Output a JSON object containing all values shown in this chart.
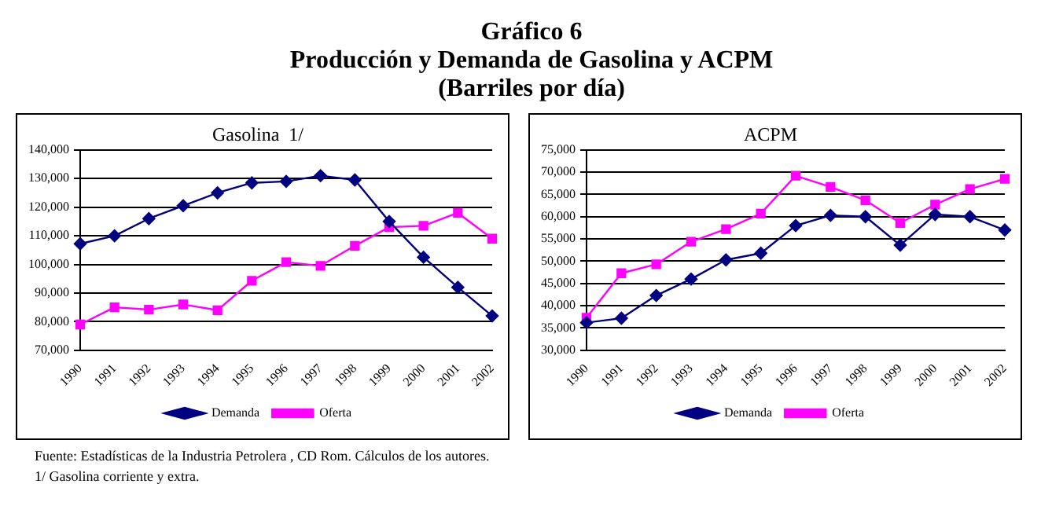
{
  "chart_data": [
    {
      "type": "other",
      "title": "Gráfico 6",
      "subtitle": "Producción y Demanda de Gasolina y ACPM",
      "annotations": [
        "(Barriles por día)"
      ]
    },
    {
      "type": "line",
      "title": "Gasolina  1/",
      "categories": [
        "1990",
        "1991",
        "1992",
        "1993",
        "1994",
        "1995",
        "1996",
        "1997",
        "1998",
        "1999",
        "2000",
        "2001",
        "2002"
      ],
      "series": [
        {
          "name": "Demanda",
          "color": "#000080",
          "marker": "diamond",
          "values": [
            107200,
            110000,
            116000,
            120500,
            125000,
            128500,
            129000,
            131000,
            129500,
            115000,
            102500,
            92000,
            82000
          ]
        },
        {
          "name": "Oferta",
          "color": "#ff00ff",
          "marker": "square",
          "values": [
            79000,
            85000,
            84200,
            86000,
            84000,
            94300,
            100800,
            99500,
            106500,
            113000,
            113500,
            118000,
            109000
          ]
        }
      ],
      "ylim": [
        70000,
        140000
      ],
      "yticks": [
        {
          "value": 70000,
          "label": "70,000"
        },
        {
          "value": 80000,
          "label": "80,000"
        },
        {
          "value": 90000,
          "label": "90,000"
        },
        {
          "value": 100000,
          "label": "100,000"
        },
        {
          "value": 110000,
          "label": "110,000"
        },
        {
          "value": 120000,
          "label": "120,000"
        },
        {
          "value": 130000,
          "label": "130,000"
        },
        {
          "value": 140000,
          "label": "140,000"
        }
      ],
      "grid": "y",
      "legend": "bottom"
    },
    {
      "type": "line",
      "title": "ACPM",
      "categories": [
        "1990",
        "1991",
        "1992",
        "1993",
        "1994",
        "1995",
        "1996",
        "1997",
        "1998",
        "1999",
        "2000",
        "2001",
        "2002"
      ],
      "series": [
        {
          "name": "Demanda",
          "color": "#000080",
          "marker": "diamond",
          "values": [
            36200,
            37200,
            42300,
            46000,
            50300,
            51800,
            58000,
            60300,
            60000,
            53600,
            60500,
            60000,
            57000
          ]
        },
        {
          "name": "Oferta",
          "color": "#ff00ff",
          "marker": "square",
          "values": [
            37300,
            47300,
            49300,
            54400,
            57200,
            60700,
            69200,
            66700,
            63700,
            58600,
            62700,
            66200,
            68500
          ]
        }
      ],
      "ylim": [
        30000,
        75000
      ],
      "yticks": [
        {
          "value": 30000,
          "label": "30,000"
        },
        {
          "value": 35000,
          "label": "35,000"
        },
        {
          "value": 40000,
          "label": "40,000"
        },
        {
          "value": 45000,
          "label": "45,000"
        },
        {
          "value": 50000,
          "label": "50,000"
        },
        {
          "value": 55000,
          "label": "55,000"
        },
        {
          "value": 60000,
          "label": "60,000"
        },
        {
          "value": 65000,
          "label": "65,000"
        },
        {
          "value": 70000,
          "label": "70,000"
        },
        {
          "value": 75000,
          "label": "75,000"
        }
      ],
      "grid": "y",
      "legend": "bottom"
    },
    {
      "type": "other",
      "annotations": [
        "Fuente: Estadísticas de la Industria Petrolera , CD Rom. Cálculos de los autores.",
        "1/  Gasolina corriente y extra."
      ]
    }
  ]
}
